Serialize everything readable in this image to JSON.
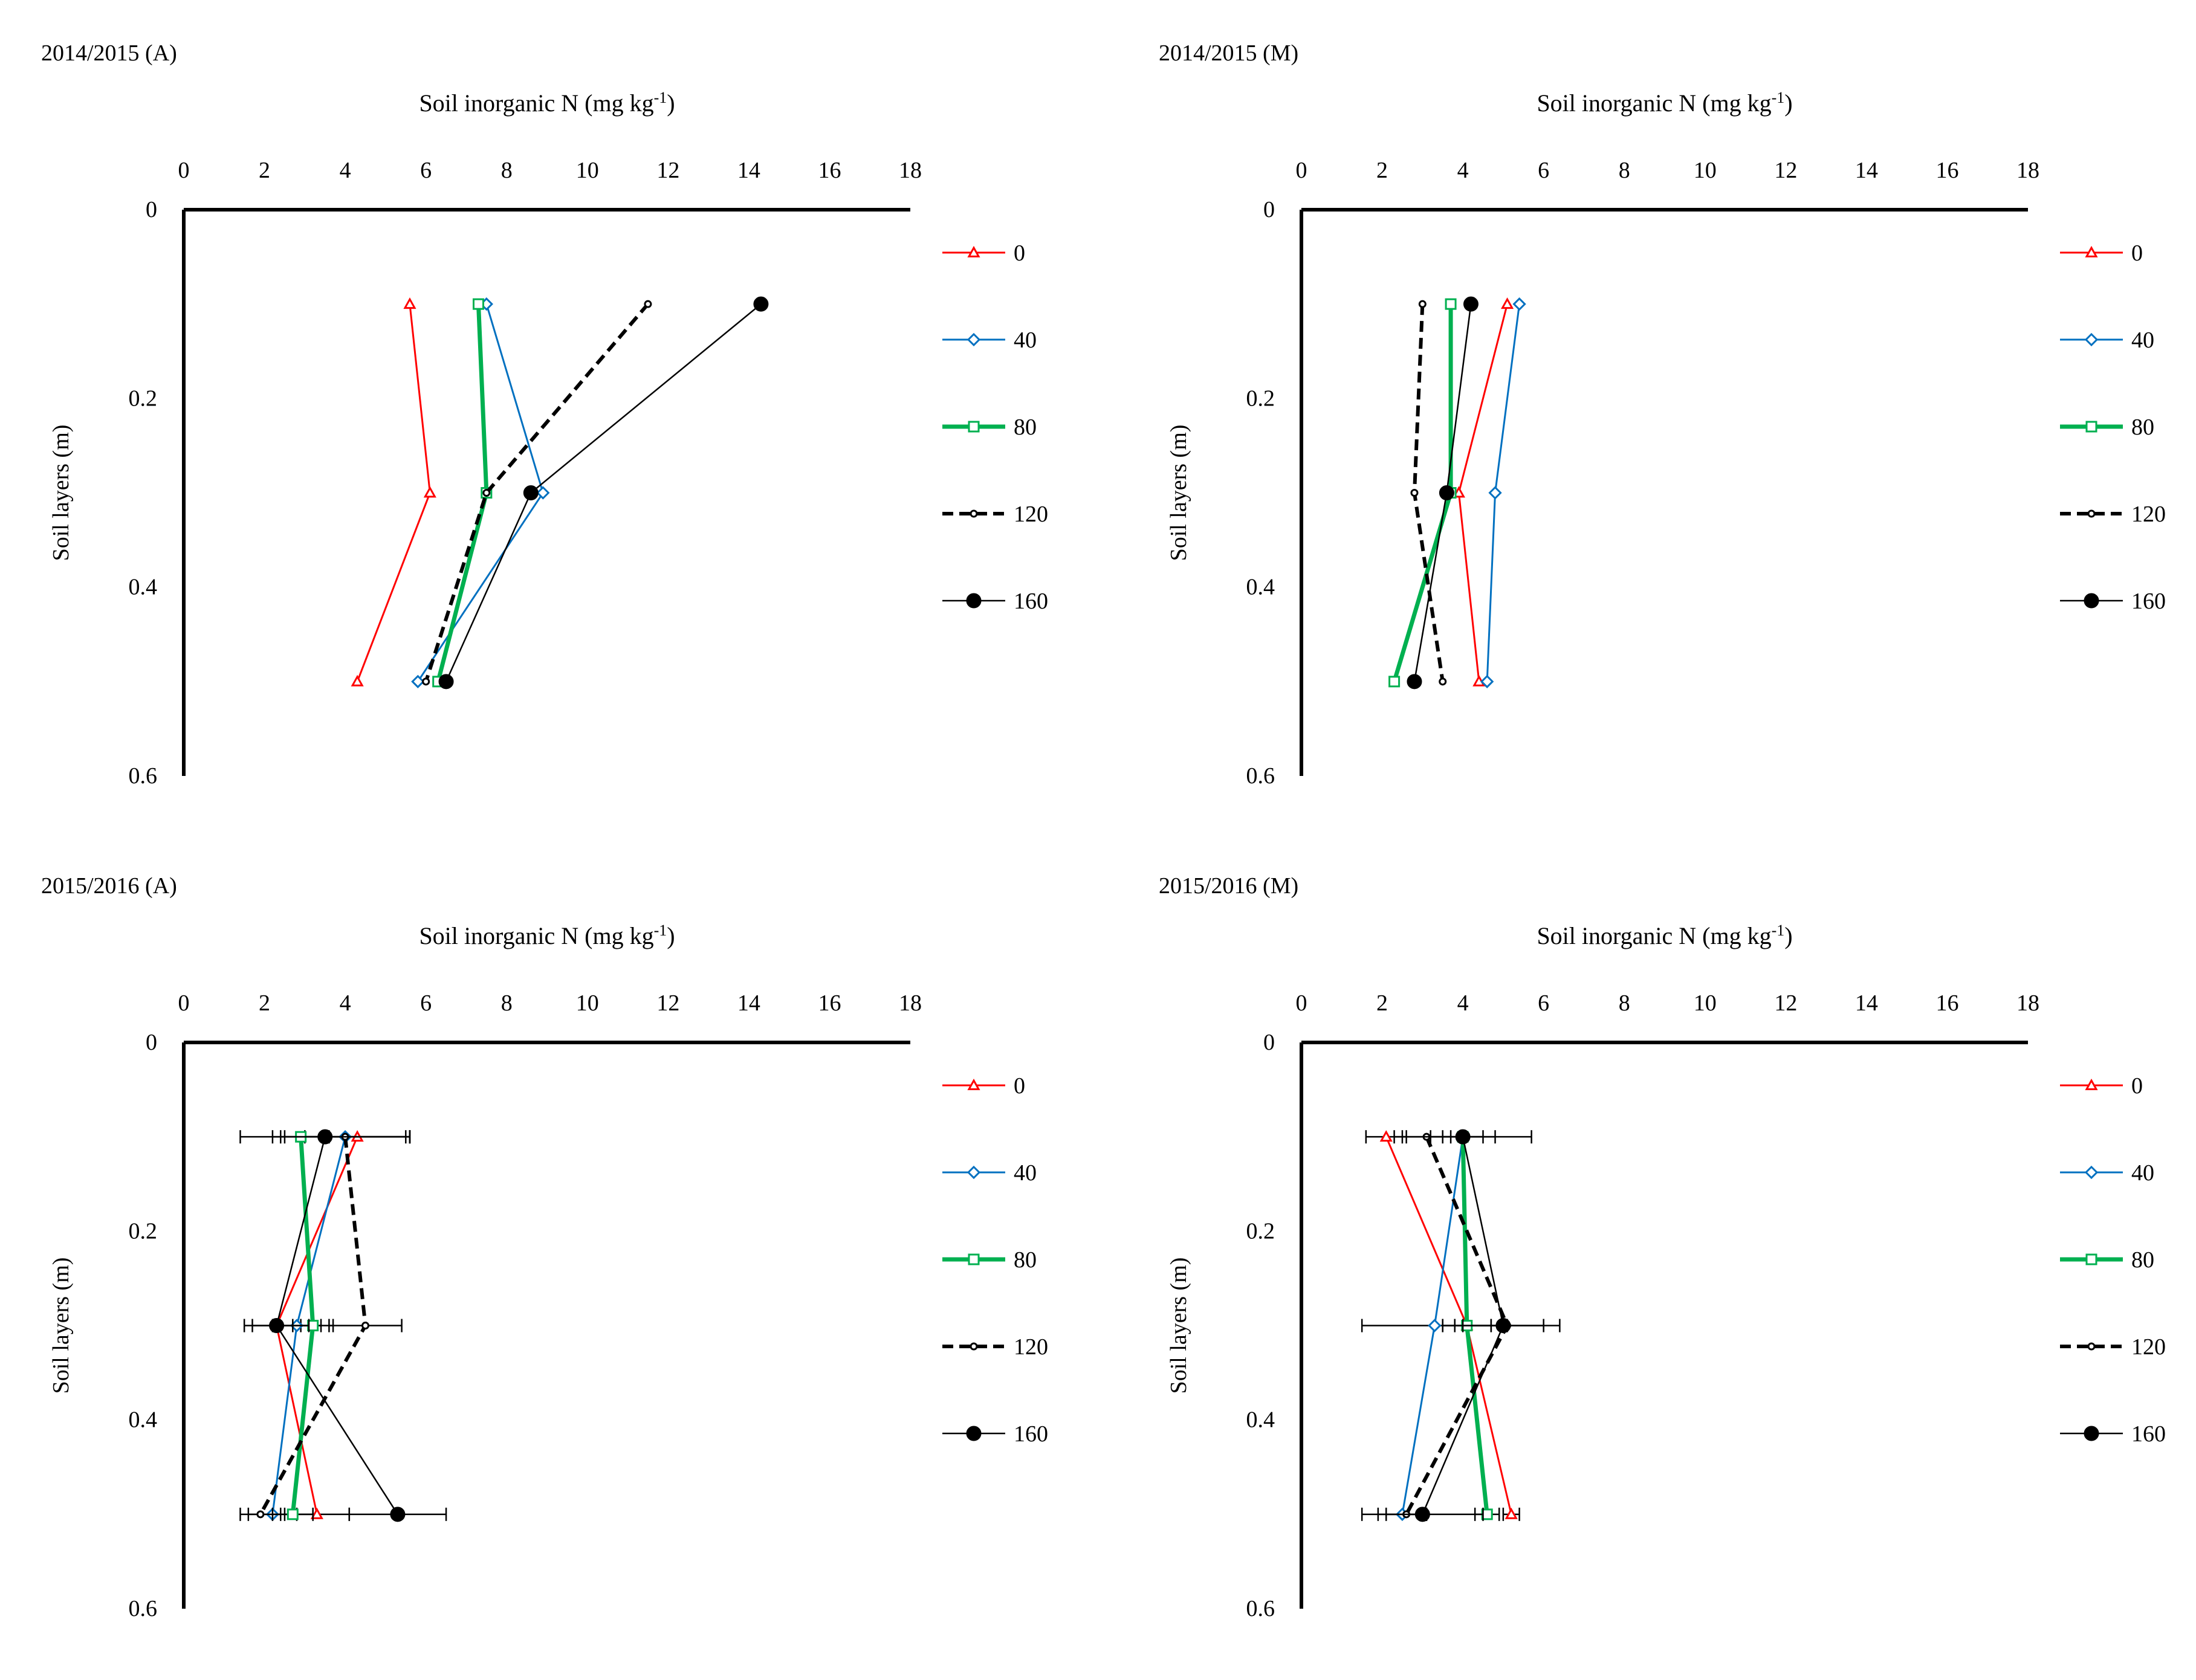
{
  "colors": {
    "s0": "#ff0000",
    "s40": "#0070c0",
    "s80": "#00b050",
    "s120": "#000000",
    "s160": "#000000",
    "axis": "#000000"
  },
  "chart_data": [
    {
      "type": "line",
      "title": "2014/2015 (A)",
      "xlabel": "Soil inorganic N (mg kg-1)",
      "ylabel": "Soil layers (m)",
      "xlim": [
        0,
        18
      ],
      "ylim": [
        0,
        0.6
      ],
      "x_ticks": [
        0,
        2,
        4,
        6,
        8,
        10,
        12,
        14,
        16,
        18
      ],
      "y_ticks": [
        0,
        0.2,
        0.4,
        0.6
      ],
      "legend_position": "right",
      "depths": [
        0.1,
        0.3,
        0.5
      ],
      "series": [
        {
          "name": "0",
          "values": [
            5.6,
            6.1,
            4.3
          ]
        },
        {
          "name": "40",
          "values": [
            7.5,
            8.9,
            5.8
          ]
        },
        {
          "name": "80",
          "values": [
            7.3,
            7.5,
            6.3
          ]
        },
        {
          "name": "120",
          "values": [
            11.5,
            7.5,
            6.0
          ]
        },
        {
          "name": "160",
          "values": [
            14.3,
            8.6,
            6.5
          ]
        }
      ]
    },
    {
      "type": "line",
      "title": "2014/2015 (M)",
      "xlabel": "Soil inorganic N (mg kg-1)",
      "ylabel": "Soil layers (m)",
      "xlim": [
        0,
        18
      ],
      "ylim": [
        0,
        0.6
      ],
      "x_ticks": [
        0,
        2,
        4,
        6,
        8,
        10,
        12,
        14,
        16,
        18
      ],
      "y_ticks": [
        0,
        0.2,
        0.4,
        0.6
      ],
      "legend_position": "right",
      "depths": [
        0.1,
        0.3,
        0.5
      ],
      "series": [
        {
          "name": "0",
          "values": [
            5.1,
            3.9,
            4.4
          ]
        },
        {
          "name": "40",
          "values": [
            5.4,
            4.8,
            4.6
          ]
        },
        {
          "name": "80",
          "values": [
            3.7,
            3.7,
            2.3
          ]
        },
        {
          "name": "120",
          "values": [
            3.0,
            2.8,
            3.5
          ]
        },
        {
          "name": "160",
          "values": [
            4.2,
            3.6,
            2.8
          ]
        }
      ]
    },
    {
      "type": "line",
      "title": "2015/2016 (A)",
      "xlabel": "Soil inorganic N (mg kg-1)",
      "ylabel": "Soil layers (m)",
      "xlim": [
        0,
        18
      ],
      "ylim": [
        0,
        0.6
      ],
      "x_ticks": [
        0,
        2,
        4,
        6,
        8,
        10,
        12,
        14,
        16,
        18
      ],
      "y_ticks": [
        0,
        0.2,
        0.4,
        0.6
      ],
      "legend_position": "right",
      "depths": [
        0.1,
        0.3,
        0.5
      ],
      "series": [
        {
          "name": "0",
          "values": [
            4.3,
            2.3,
            3.3
          ],
          "errors": [
            1.3,
            0.6,
            0.8
          ]
        },
        {
          "name": "40",
          "values": [
            4.0,
            2.8,
            2.2
          ],
          "errors": [
            1.6,
            0.6,
            0.6
          ]
        },
        {
          "name": "80",
          "values": [
            2.9,
            3.2,
            2.7
          ],
          "errors": [
            0.7,
            0.5,
            0.5
          ]
        },
        {
          "name": "120",
          "values": [
            4.0,
            4.5,
            1.9
          ],
          "errors": [
            1.5,
            0.9,
            0.5
          ]
        },
        {
          "name": "160",
          "values": [
            3.5,
            2.3,
            5.3
          ],
          "errors": [
            2.1,
            0.8,
            1.2
          ]
        }
      ]
    },
    {
      "type": "line",
      "title": "2015/2016 (M)",
      "xlabel": "Soil inorganic N (mg kg-1)",
      "ylabel": "Soil layers (m)",
      "xlim": [
        0,
        18
      ],
      "ylim": [
        0,
        0.6
      ],
      "x_ticks": [
        0,
        2,
        4,
        6,
        8,
        10,
        12,
        14,
        16,
        18
      ],
      "y_ticks": [
        0,
        0.2,
        0.4,
        0.6
      ],
      "legend_position": "right",
      "depths": [
        0.1,
        0.3,
        0.5
      ],
      "series": [
        {
          "name": "0",
          "values": [
            2.1,
            4.1,
            5.2
          ],
          "errors": [
            0.5,
            0.6,
            0.2
          ]
        },
        {
          "name": "40",
          "values": [
            4.0,
            3.3,
            2.5
          ],
          "errors": [
            0.8,
            1.8,
            0.6
          ]
        },
        {
          "name": "80",
          "values": [
            4.0,
            4.1,
            4.6
          ],
          "errors": [
            0.5,
            0.6,
            0.3
          ]
        },
        {
          "name": "120",
          "values": [
            3.1,
            5.1,
            2.6
          ],
          "errors": [
            0.6,
            1.3,
            0.5
          ]
        },
        {
          "name": "160",
          "values": [
            4.0,
            5.0,
            3.0
          ],
          "errors": [
            1.7,
            1.0,
            1.5
          ]
        }
      ]
    }
  ]
}
